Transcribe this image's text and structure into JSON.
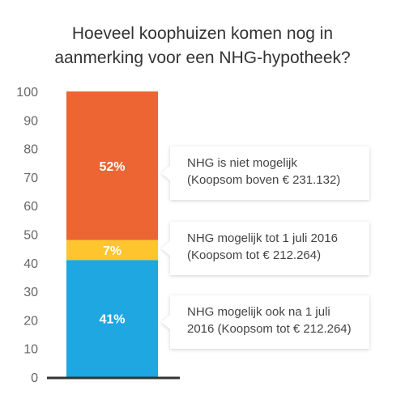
{
  "title_lines": [
    "Hoeveel koophuizen komen nog in",
    "aanmerking voor een NHG-hypotheek?"
  ],
  "colors": {
    "seg_0": "#1ea7e1",
    "seg_1": "#fec52e",
    "seg_2": "#ec6532",
    "axis": "#333333",
    "callout_bg": "#ffffff"
  },
  "chart_data": {
    "type": "bar",
    "stacked": true,
    "ylim": [
      0,
      100
    ],
    "yticks": [
      0,
      10,
      20,
      30,
      40,
      50,
      60,
      70,
      80,
      90,
      100
    ],
    "segments": [
      {
        "value": 41,
        "label": "41%",
        "callout": [
          "NHG mogelijk ook na 1 juli",
          "2016 (Koopsom tot € 212.264)"
        ],
        "color": "#1ea7e1"
      },
      {
        "value": 7,
        "label": "7%",
        "callout": [
          "NHG mogelijk tot 1 juli 2016",
          "(Koopsom tot € 212.264)"
        ],
        "color": "#fec52e"
      },
      {
        "value": 52,
        "label": "52%",
        "callout": [
          "NHG is niet mogelijk",
          "(Koopsom boven € 231.132)"
        ],
        "color": "#ec6532"
      }
    ]
  }
}
